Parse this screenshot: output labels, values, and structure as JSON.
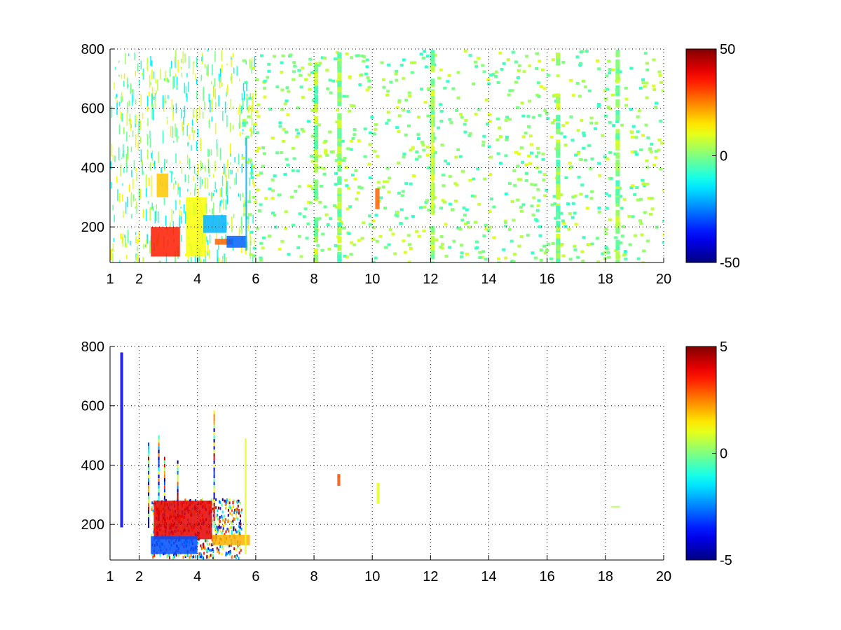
{
  "chart_data": [
    {
      "type": "heatmap",
      "panel": "top",
      "title": "",
      "xlabel": "",
      "ylabel": "",
      "xlim": [
        1,
        20
      ],
      "ylim": [
        80,
        800
      ],
      "xticks": [
        1,
        2,
        4,
        6,
        8,
        10,
        12,
        14,
        16,
        18,
        20
      ],
      "yticks": [
        200,
        400,
        600,
        800
      ],
      "grid": true,
      "grid_style": "dotted",
      "colormap": "jet",
      "clim": [
        -50,
        50
      ],
      "colorbar_ticks": [
        50,
        0,
        -50
      ],
      "features": [
        {
          "x": [
            2.4,
            3.4
          ],
          "y": [
            100,
            200
          ],
          "value": 35
        },
        {
          "x": [
            2.6,
            3.0
          ],
          "y": [
            300,
            380
          ],
          "value": 18
        },
        {
          "x": [
            3.6,
            4.3
          ],
          "y": [
            100,
            300
          ],
          "value": 12
        },
        {
          "x": [
            4.2,
            5.0
          ],
          "y": [
            180,
            240
          ],
          "value": -20
        },
        {
          "x": [
            4.6,
            5.2
          ],
          "y": [
            140,
            160
          ],
          "value": 28
        },
        {
          "x": [
            5.0,
            5.7
          ],
          "y": [
            130,
            170
          ],
          "value": -28
        },
        {
          "x": [
            5.65,
            5.7
          ],
          "y": [
            120,
            500
          ],
          "value": -20
        },
        {
          "x": [
            10.1,
            10.25
          ],
          "y": [
            260,
            330
          ],
          "value": 28
        },
        {
          "x": [
            12.02,
            12.1
          ],
          "y": [
            240,
            580
          ],
          "value": 10
        }
      ]
    },
    {
      "type": "heatmap",
      "panel": "bottom",
      "title": "",
      "xlabel": "",
      "ylabel": "",
      "xlim": [
        1,
        20
      ],
      "ylim": [
        80,
        800
      ],
      "xticks": [
        1,
        2,
        4,
        6,
        8,
        10,
        12,
        14,
        16,
        18,
        20
      ],
      "yticks": [
        200,
        400,
        600,
        800
      ],
      "grid": true,
      "grid_style": "dotted",
      "colormap": "jet",
      "clim": [
        -5,
        5
      ],
      "colorbar_ticks": [
        5,
        0,
        -5
      ],
      "features": [
        {
          "x": [
            1.35,
            1.45
          ],
          "y": [
            190,
            780
          ],
          "value": -4
        },
        {
          "x": [
            2.5,
            4.5
          ],
          "y": [
            150,
            280
          ],
          "value": 4
        },
        {
          "x": [
            2.4,
            4.0
          ],
          "y": [
            100,
            160
          ],
          "value": -3
        },
        {
          "x": [
            4.5,
            5.8
          ],
          "y": [
            130,
            165
          ],
          "value": 2
        },
        {
          "x": [
            5.62,
            5.68
          ],
          "y": [
            100,
            490
          ],
          "value": 1
        },
        {
          "x": [
            8.8,
            8.9
          ],
          "y": [
            330,
            370
          ],
          "value": 3
        },
        {
          "x": [
            10.15,
            10.25
          ],
          "y": [
            270,
            340
          ],
          "value": 1
        },
        {
          "x": [
            18.2,
            18.5
          ],
          "y": [
            258,
            262
          ],
          "value": 0.5
        }
      ]
    }
  ]
}
